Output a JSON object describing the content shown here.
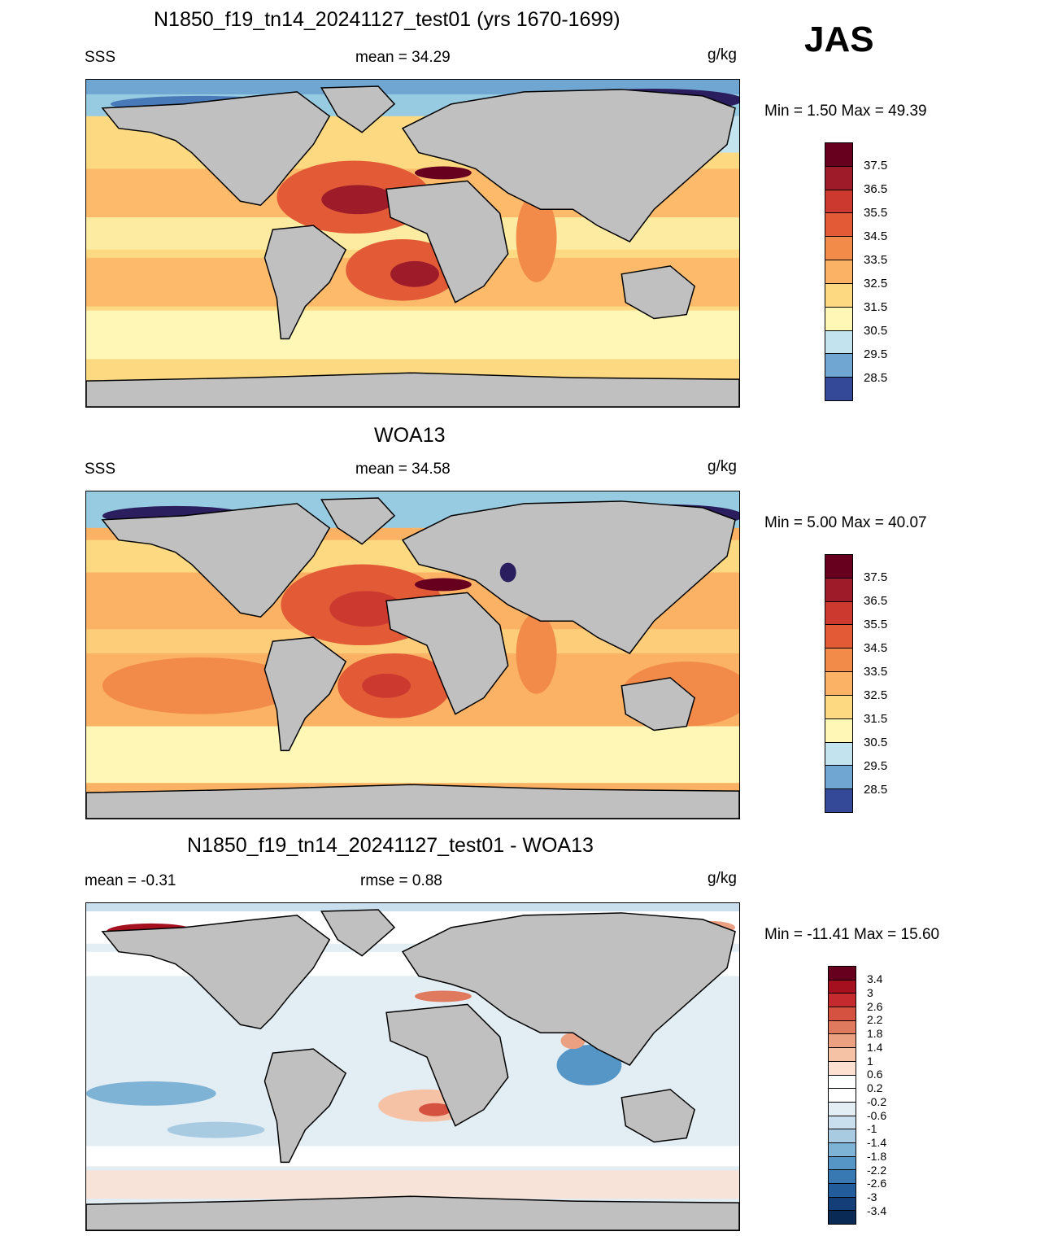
{
  "season": "JAS",
  "units": "g/kg",
  "panels": [
    {
      "title": "N1850_f19_tn14_20241127_test01 (yrs 1670-1699)",
      "left_label": "SSS",
      "center_label": "mean =  34.29",
      "right_label": "g/kg",
      "min_max": "Min =   1.50 Max =  49.39",
      "colorbar_ticks": [
        "37.5",
        "36.5",
        "35.5",
        "34.5",
        "33.5",
        "32.5",
        "31.5",
        "30.5",
        "29.5",
        "28.5"
      ]
    },
    {
      "title": "WOA13",
      "left_label": "SSS",
      "center_label": "mean =  34.58",
      "right_label": "g/kg",
      "min_max": "Min =   5.00 Max =  40.07",
      "colorbar_ticks": [
        "37.5",
        "36.5",
        "35.5",
        "34.5",
        "33.5",
        "32.5",
        "31.5",
        "30.5",
        "29.5",
        "28.5"
      ]
    },
    {
      "title": "N1850_f19_tn14_20241127_test01 - WOA13",
      "left_label": "mean =  -0.31",
      "center_label": "rmse =   0.88",
      "right_label": "g/kg",
      "min_max": "Min = -11.41 Max =  15.60",
      "colorbar_ticks": [
        "3.4",
        "3",
        "2.6",
        "2.2",
        "1.8",
        "1.4",
        "1",
        "0.6",
        "0.2",
        "-0.2",
        "-0.6",
        "-1",
        "-1.4",
        "-1.8",
        "-2.2",
        "-2.6",
        "-3",
        "-3.4"
      ]
    }
  ],
  "colors": {
    "land": "#c0c0c0",
    "sss_scale": [
      "#67001f",
      "#9e1b2a",
      "#cc3a2f",
      "#e25b36",
      "#f28a49",
      "#fbb264",
      "#fdd982",
      "#fef7b6",
      "#e8f4f0",
      "#c3e3ee",
      "#97cbe2",
      "#6fa6d2",
      "#4879b8",
      "#354999",
      "#2a1e5e"
    ],
    "diff_scale": [
      "#67001f",
      "#a5101f",
      "#c52a2e",
      "#d4523f",
      "#e07a5e",
      "#eca082",
      "#f6c2a6",
      "#fde0d0",
      "#ffffff",
      "#ffffff",
      "#e2edf4",
      "#c9dfee",
      "#a8cbe2",
      "#7eb3d6",
      "#5596c7",
      "#3878b3",
      "#225c9b",
      "#133e78",
      "#082a55"
    ]
  }
}
